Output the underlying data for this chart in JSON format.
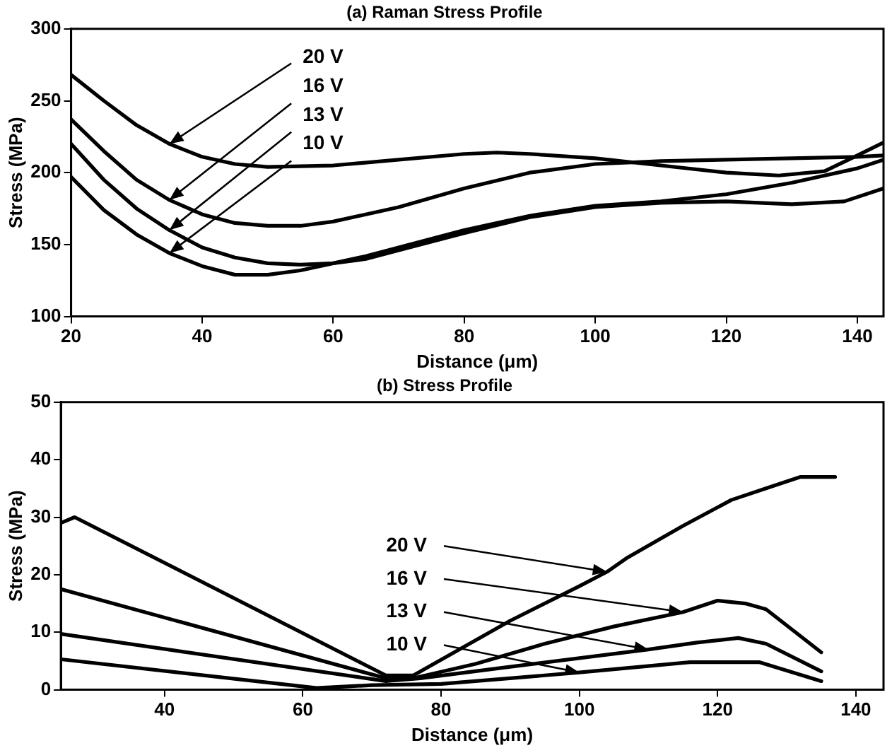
{
  "chart_data": [
    {
      "type": "line",
      "title": "(a) Raman Stress Profile",
      "xlabel": "Distance (μm)",
      "ylabel": "Stress (MPa)",
      "xlim": [
        20,
        144
      ],
      "xticks": [
        20,
        40,
        60,
        80,
        100,
        120,
        140
      ],
      "ylim": [
        100,
        300
      ],
      "yticks": [
        100,
        150,
        200,
        250,
        300
      ],
      "grid": false,
      "legend": false,
      "marker": "none",
      "line_style": "solid",
      "series": [
        {
          "color": "#000000",
          "x": [
            20,
            25,
            30,
            35,
            40,
            45,
            50,
            60,
            70,
            80,
            85,
            90,
            100,
            110,
            120,
            128,
            135,
            140,
            144
          ],
          "values": [
            268,
            250,
            233,
            220,
            211,
            206,
            204,
            205,
            209,
            213,
            214,
            213,
            210,
            205,
            200,
            198,
            201,
            212,
            221
          ]
        },
        {
          "color": "#000000",
          "x": [
            20,
            25,
            30,
            35,
            40,
            45,
            50,
            55,
            60,
            70,
            80,
            90,
            100,
            110,
            120,
            130,
            140,
            144
          ],
          "values": [
            237,
            215,
            195,
            181,
            171,
            165,
            163,
            163,
            166,
            176,
            189,
            200,
            206,
            208,
            209,
            210,
            211,
            212
          ]
        },
        {
          "color": "#000000",
          "x": [
            20,
            25,
            30,
            35,
            40,
            45,
            50,
            55,
            60,
            65,
            70,
            80,
            90,
            100,
            110,
            120,
            130,
            138,
            144
          ],
          "values": [
            220,
            195,
            175,
            160,
            148,
            141,
            137,
            136,
            137,
            140,
            146,
            158,
            169,
            176,
            179,
            180,
            178,
            180,
            189
          ]
        },
        {
          "color": "#000000",
          "x": [
            20,
            25,
            30,
            35,
            40,
            45,
            50,
            55,
            60,
            65,
            70,
            80,
            90,
            100,
            110,
            120,
            130,
            140,
            144
          ],
          "values": [
            197,
            174,
            157,
            144,
            135,
            129,
            129,
            132,
            137,
            142,
            148,
            160,
            170,
            177,
            180,
            185,
            193,
            203,
            209
          ]
        }
      ],
      "annotations": [
        {
          "text": "20 V",
          "x": 35,
          "y": 220
        },
        {
          "text": "16 V",
          "x": 35,
          "y": 181
        },
        {
          "text": "13 V",
          "x": 35,
          "y": 160
        },
        {
          "text": "10 V",
          "x": 35,
          "y": 144
        }
      ]
    },
    {
      "type": "line",
      "title": "(b) Stress Profile",
      "xlabel": "Distance (μm)",
      "ylabel": "Stress (MPa)",
      "xlim": [
        25,
        144
      ],
      "xticks": [
        40,
        60,
        80,
        100,
        120,
        140
      ],
      "ylim": [
        0,
        50
      ],
      "yticks": [
        0,
        10,
        20,
        30,
        40,
        50
      ],
      "grid": false,
      "legend": false,
      "marker": "none",
      "line_style": "solid",
      "series": [
        {
          "color": "#000000",
          "x": [
            25,
            27,
            72,
            76,
            90,
            100,
            104,
            107,
            115,
            122,
            127,
            132,
            137
          ],
          "values": [
            29,
            30,
            2.5,
            2.5,
            12,
            18,
            20.5,
            23,
            28.5,
            33,
            35,
            37,
            37
          ]
        },
        {
          "color": "#000000",
          "x": [
            25,
            72,
            76,
            85,
            95,
            105,
            115,
            120,
            124,
            127,
            135
          ],
          "values": [
            17.5,
            2,
            2,
            4.5,
            8,
            11,
            13.5,
            15.5,
            15,
            14,
            6.5
          ]
        },
        {
          "color": "#000000",
          "x": [
            25,
            72,
            77,
            90,
            110,
            117,
            123,
            127,
            135
          ],
          "values": [
            9.7,
            1.5,
            2,
            4,
            7,
            8.2,
            9,
            8,
            3.2
          ]
        },
        {
          "color": "#000000",
          "x": [
            25,
            62,
            70,
            80,
            100,
            116,
            126,
            135
          ],
          "values": [
            5.3,
            0.3,
            0.8,
            1,
            3,
            4.8,
            4.8,
            1.5
          ]
        }
      ],
      "annotations": [
        {
          "text": "20 V",
          "x": 104,
          "y": 20.5
        },
        {
          "text": "16 V",
          "x": 115,
          "y": 13.5
        },
        {
          "text": "13 V",
          "x": 110,
          "y": 7
        },
        {
          "text": "10 V",
          "x": 100,
          "y": 3
        }
      ]
    }
  ]
}
